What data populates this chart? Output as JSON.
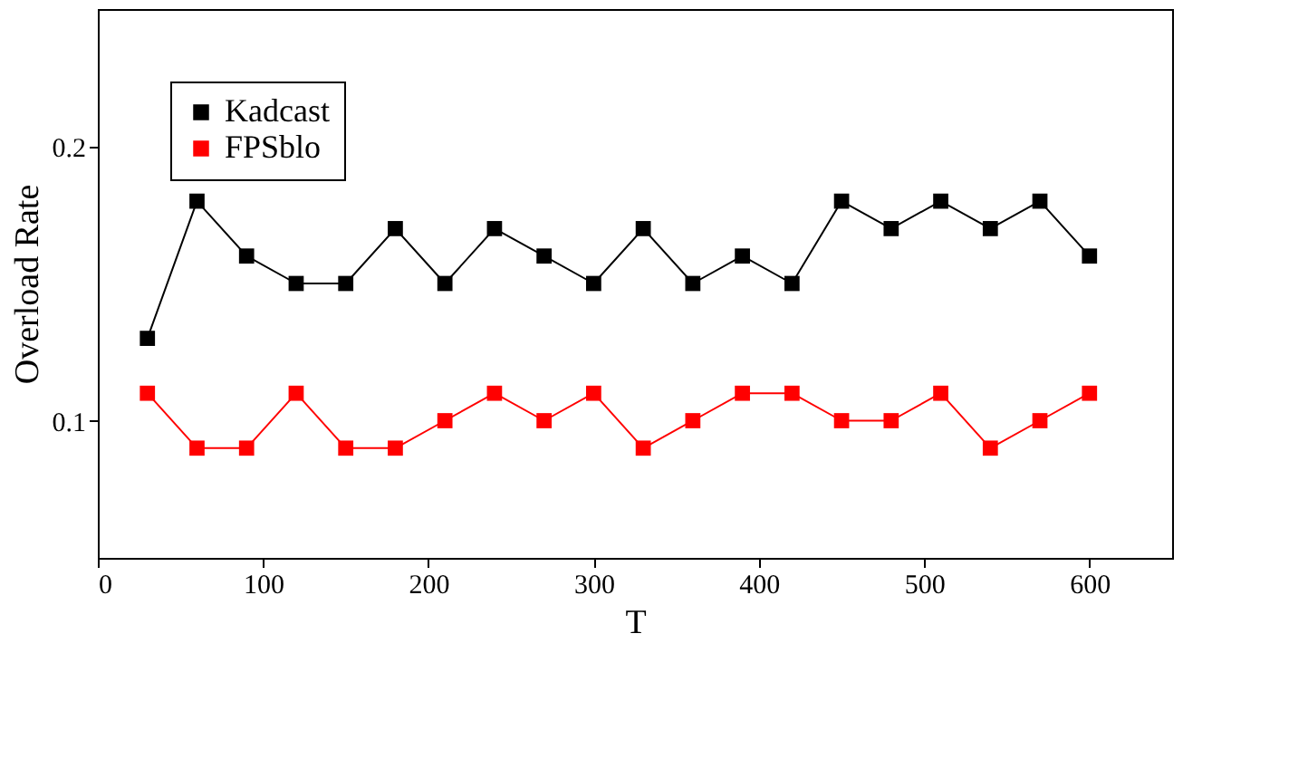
{
  "chart_data": {
    "type": "line",
    "xlabel": "T",
    "ylabel": "Overload Rate",
    "x": [
      30,
      60,
      90,
      120,
      150,
      180,
      210,
      240,
      270,
      300,
      330,
      360,
      390,
      420,
      450,
      480,
      510,
      540,
      570,
      600
    ],
    "series": [
      {
        "name": "Kadcast",
        "color": "#000000",
        "values": [
          0.13,
          0.18,
          0.16,
          0.15,
          0.15,
          0.17,
          0.15,
          0.17,
          0.16,
          0.15,
          0.17,
          0.15,
          0.16,
          0.15,
          0.18,
          0.17,
          0.18,
          0.17,
          0.18,
          0.16
        ]
      },
      {
        "name": "FPSblo",
        "color": "#ff0000",
        "values": [
          0.11,
          0.09,
          0.09,
          0.11,
          0.09,
          0.09,
          0.1,
          0.11,
          0.1,
          0.11,
          0.09,
          0.1,
          0.11,
          0.11,
          0.1,
          0.1,
          0.11,
          0.09,
          0.1,
          0.11
        ]
      }
    ],
    "xlim": [
      0,
      650
    ],
    "ylim": [
      0.05,
      0.25
    ],
    "xticks": [
      0,
      100,
      200,
      300,
      400,
      500,
      600
    ],
    "yticks": [
      0.1,
      0.2
    ],
    "marker": "square",
    "line_style": "solid",
    "legend": "top left",
    "grid": false
  }
}
